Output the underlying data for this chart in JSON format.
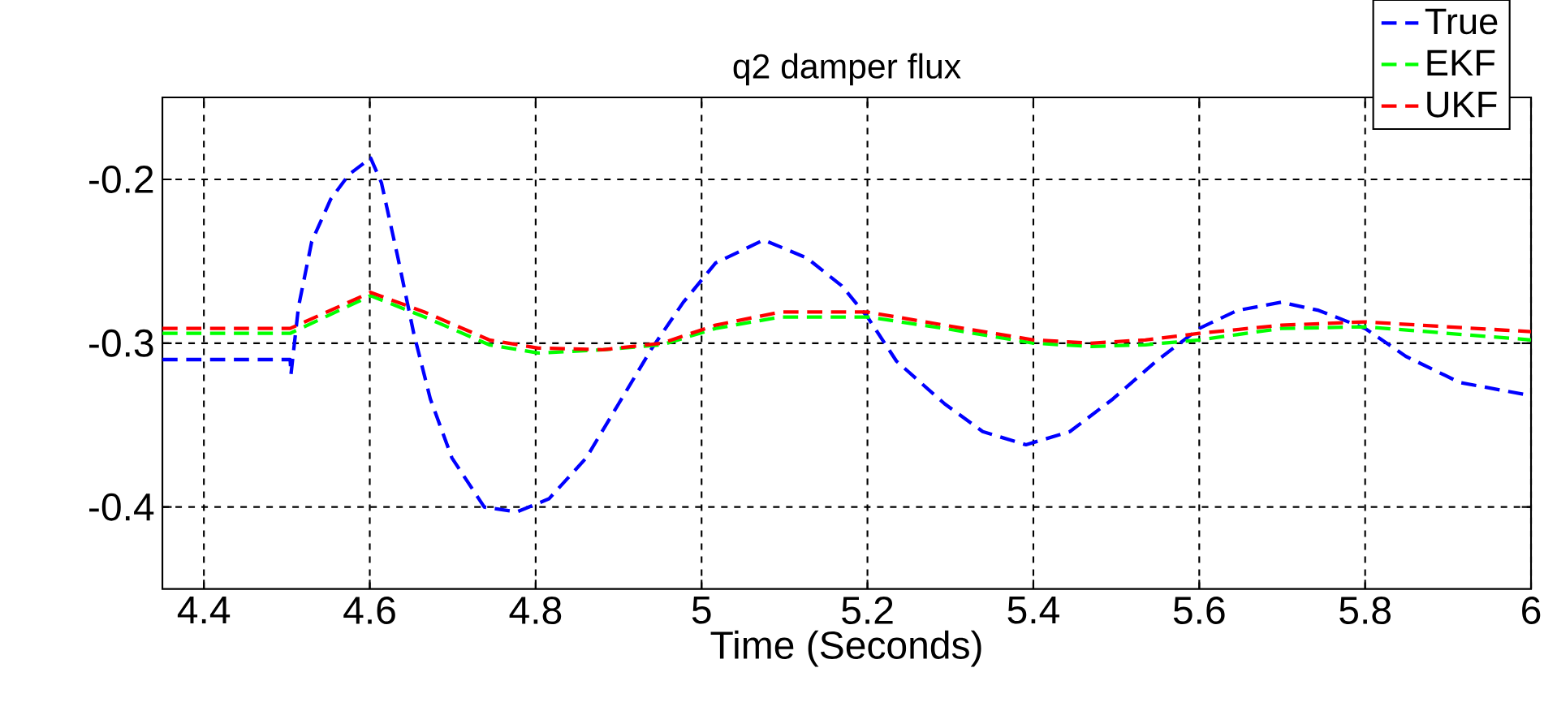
{
  "chart_data": {
    "type": "line",
    "title": "q2 damper flux",
    "xlabel": "Time (Seconds)",
    "xlim": [
      4.35,
      6
    ],
    "ylim": [
      -0.45,
      -0.15
    ],
    "xticks": [
      4.4,
      4.6,
      4.8,
      5,
      5.2,
      5.4,
      5.6,
      5.8,
      6
    ],
    "yticks": [
      -0.4,
      -0.3,
      -0.2
    ],
    "grid": true,
    "legend": "top right",
    "line_style": "dashed",
    "marker": "none",
    "series": [
      {
        "name": "True",
        "color": "#0000ff",
        "x": [
          4.35,
          4.504,
          4.505,
          4.514,
          4.53,
          4.553,
          4.575,
          4.601,
          4.614,
          4.634,
          4.653,
          4.673,
          4.699,
          4.738,
          4.777,
          4.816,
          4.861,
          4.9,
          4.939,
          4.978,
          5.017,
          5.075,
          5.127,
          5.169,
          5.2,
          5.235,
          5.293,
          5.339,
          5.391,
          5.444,
          5.496,
          5.548,
          5.6,
          5.646,
          5.699,
          5.744,
          5.8,
          5.849,
          5.914,
          6.0
        ],
        "values": [
          -0.31,
          -0.31,
          -0.319,
          -0.278,
          -0.238,
          -0.212,
          -0.197,
          -0.187,
          -0.202,
          -0.248,
          -0.294,
          -0.334,
          -0.37,
          -0.4,
          -0.403,
          -0.395,
          -0.37,
          -0.337,
          -0.304,
          -0.275,
          -0.251,
          -0.237,
          -0.248,
          -0.265,
          -0.284,
          -0.311,
          -0.337,
          -0.354,
          -0.362,
          -0.354,
          -0.334,
          -0.311,
          -0.291,
          -0.28,
          -0.275,
          -0.28,
          -0.291,
          -0.308,
          -0.324,
          -0.332
        ]
      },
      {
        "name": "EKF",
        "color": "#00ff00",
        "x": [
          4.35,
          4.504,
          4.601,
          4.666,
          4.744,
          4.803,
          4.881,
          4.952,
          5.017,
          5.095,
          5.2,
          5.293,
          5.4,
          5.47,
          5.535,
          5.6,
          5.699,
          5.8,
          6.0
        ],
        "values": [
          -0.294,
          -0.294,
          -0.271,
          -0.284,
          -0.301,
          -0.306,
          -0.304,
          -0.301,
          -0.291,
          -0.284,
          -0.284,
          -0.291,
          -0.3,
          -0.302,
          -0.301,
          -0.298,
          -0.291,
          -0.29,
          -0.298
        ]
      },
      {
        "name": "UKF",
        "color": "#ff0000",
        "x": [
          4.35,
          4.504,
          4.601,
          4.666,
          4.744,
          4.803,
          4.881,
          4.952,
          5.017,
          5.095,
          5.2,
          5.293,
          5.4,
          5.47,
          5.535,
          5.6,
          5.699,
          5.8,
          6.0
        ],
        "values": [
          -0.291,
          -0.291,
          -0.269,
          -0.281,
          -0.298,
          -0.303,
          -0.304,
          -0.3,
          -0.289,
          -0.281,
          -0.281,
          -0.289,
          -0.298,
          -0.3,
          -0.298,
          -0.294,
          -0.289,
          -0.287,
          -0.293
        ]
      }
    ]
  }
}
